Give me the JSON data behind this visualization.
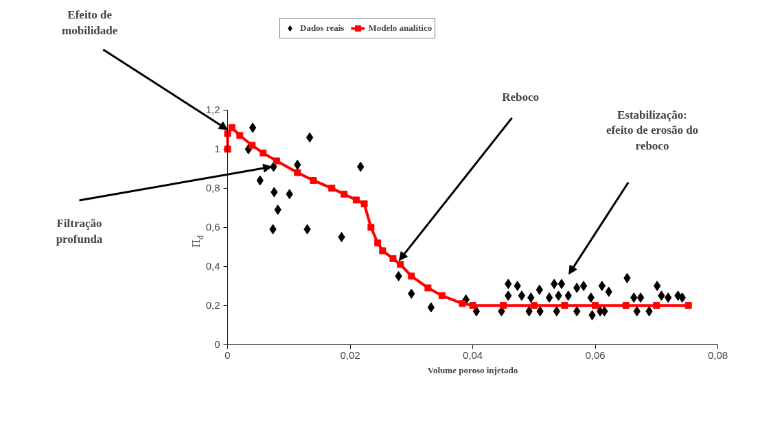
{
  "chart_data": {
    "type": "scatter",
    "xlabel": "Volume poroso injetado",
    "ylabel": "Π$_{d}$",
    "xlim": [
      0,
      0.08
    ],
    "ylim": [
      0,
      1.2
    ],
    "xticks": [
      0,
      {
        "value": 0.02,
        "label": "0,02"
      },
      {
        "value": 0.04,
        "label": "0,04"
      },
      {
        "value": 0.06,
        "label": "0,06"
      },
      {
        "value": 0.08,
        "label": "0,08"
      }
    ],
    "yticks": [
      0,
      {
        "value": 0.2,
        "label": "0,2"
      },
      {
        "value": 0.4,
        "label": "0,4"
      },
      {
        "value": 0.6,
        "label": "0,6"
      },
      {
        "value": 0.8,
        "label": "0,8"
      },
      1,
      {
        "value": 1.2,
        "label": "1,2"
      }
    ],
    "grid": false,
    "legend": "top",
    "series": [
      {
        "name": "Dados reais",
        "type": "scatter",
        "marker": "diamond",
        "color": "#000000",
        "x": [
          0.0034,
          0.0041,
          0.0053,
          0.0074,
          0.0076,
          0.0082,
          0.0075,
          0.0101,
          0.0114,
          0.013,
          0.0134,
          0.0186,
          0.0217,
          0.0279,
          0.03,
          0.0332,
          0.0389,
          0.0406,
          0.0447,
          0.0458,
          0.0458,
          0.0473,
          0.048,
          0.0492,
          0.0495,
          0.0509,
          0.051,
          0.0525,
          0.0533,
          0.0537,
          0.054,
          0.0545,
          0.0556,
          0.057,
          0.057,
          0.0581,
          0.0593,
          0.0595,
          0.0608,
          0.0611,
          0.0615,
          0.0622,
          0.0652,
          0.0663,
          0.0668,
          0.0674,
          0.0688,
          0.0701,
          0.0708,
          0.0719,
          0.0735,
          0.0742
        ],
        "values": [
          1.0,
          1.11,
          0.84,
          0.59,
          0.78,
          0.69,
          0.91,
          0.77,
          0.92,
          0.59,
          1.06,
          0.55,
          0.91,
          0.35,
          0.26,
          0.19,
          0.23,
          0.17,
          0.17,
          0.31,
          0.25,
          0.3,
          0.25,
          0.17,
          0.24,
          0.28,
          0.17,
          0.24,
          0.31,
          0.17,
          0.25,
          0.31,
          0.25,
          0.29,
          0.17,
          0.3,
          0.24,
          0.15,
          0.17,
          0.3,
          0.17,
          0.27,
          0.34,
          0.24,
          0.17,
          0.24,
          0.17,
          0.3,
          0.25,
          0.24,
          0.25,
          0.24
        ]
      },
      {
        "name": "Modelo analítico",
        "type": "line",
        "marker": "square",
        "line_style": "solid",
        "color": "#ff0000",
        "x": [
          0,
          0,
          0.0007,
          0.002,
          0.004,
          0.0058,
          0.008,
          0.0114,
          0.014,
          0.017,
          0.019,
          0.021,
          0.0223,
          0.0234,
          0.0245,
          0.0253,
          0.027,
          0.0282,
          0.03,
          0.0327,
          0.035,
          0.0383,
          0.04,
          0.045,
          0.05,
          0.055,
          0.06,
          0.065,
          0.07,
          0.0752
        ],
        "values": [
          1.0,
          1.08,
          1.11,
          1.07,
          1.02,
          0.98,
          0.94,
          0.88,
          0.84,
          0.8,
          0.77,
          0.74,
          0.72,
          0.6,
          0.52,
          0.48,
          0.44,
          0.41,
          0.35,
          0.29,
          0.25,
          0.21,
          0.2,
          0.2,
          0.2,
          0.2,
          0.2,
          0.2,
          0.2,
          0.2
        ]
      }
    ],
    "annotations": [
      {
        "text": "Efeito de mobilidade",
        "x": 0.0,
        "y": 1.1
      },
      "Filtração profunda",
      {
        "text": "Reboco",
        "x": 0.028,
        "y": 0.43
      },
      "Estabilização: efeito de erosão do reboco"
    ]
  }
}
